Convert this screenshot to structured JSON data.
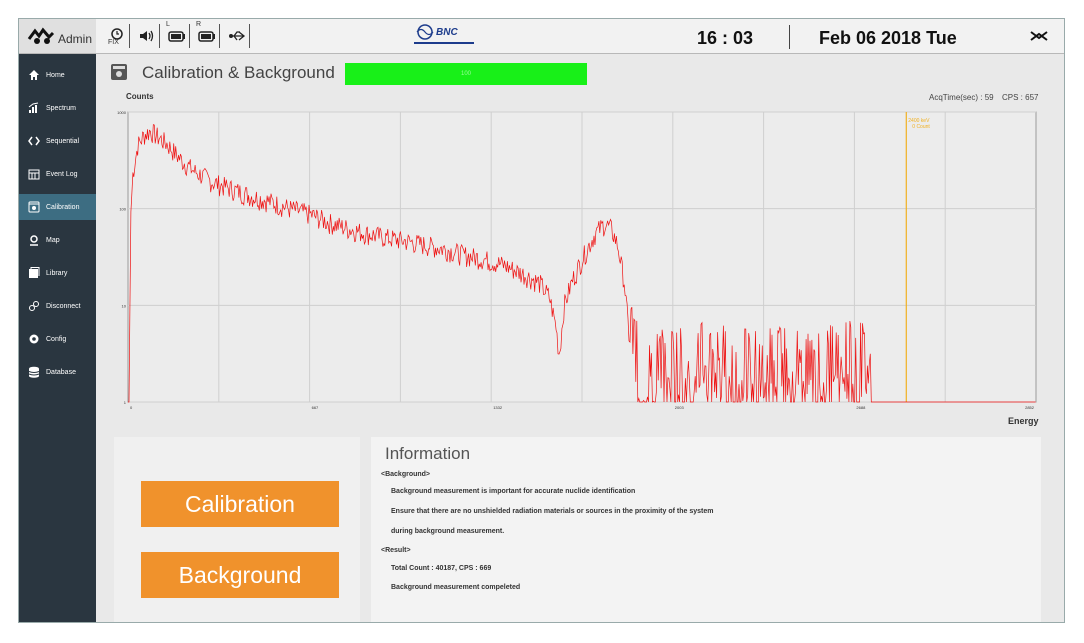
{
  "topbar": {
    "admin_label": "Admin",
    "status_icons": [
      "gps-fix-icon",
      "speaker-icon",
      "battery-left-icon",
      "battery-right-icon",
      "usb-icon"
    ],
    "gps_label": "FIX",
    "battery_left_label": "L",
    "battery_right_label": "R",
    "brand": "BNC",
    "time": "16 : 03",
    "date": "Feb 06 2018 Tue"
  },
  "sidebar": {
    "items": [
      {
        "label": "Home",
        "icon": "home-icon"
      },
      {
        "label": "Spectrum",
        "icon": "spectrum-icon"
      },
      {
        "label": "Sequential",
        "icon": "sequential-icon"
      },
      {
        "label": "Event Log",
        "icon": "calendar-icon"
      },
      {
        "label": "Calibration",
        "icon": "calibration-icon",
        "active": true
      },
      {
        "label": "Map",
        "icon": "map-pin-icon"
      },
      {
        "label": "Library",
        "icon": "library-icon"
      },
      {
        "label": "Disconnect",
        "icon": "disconnect-icon"
      },
      {
        "label": "Config",
        "icon": "gear-icon"
      },
      {
        "label": "Database",
        "icon": "database-icon"
      }
    ]
  },
  "main": {
    "title": "Calibration & Background",
    "progress": {
      "label": "100",
      "percent": 100,
      "color": "#18f018"
    },
    "acq_time": "AcqTime(sec) : 59",
    "cps": "CPS : 657"
  },
  "chart_data": {
    "type": "line",
    "ylabel": "Counts",
    "xlabel": "Energy",
    "yscale": "log",
    "xlim": [
      0,
      2800
    ],
    "ylim": [
      1,
      1000
    ],
    "x_ticks": [
      "0",
      "667",
      "1332",
      "2003",
      "2688",
      "2852"
    ],
    "y_ticks": [
      "1000",
      "100",
      "10",
      "1"
    ],
    "marker": {
      "energy": 2400,
      "label_line1": "2400 keV",
      "label_line2": "0 Count",
      "color": "#f0b020"
    },
    "series": [
      {
        "color": "#ee1111",
        "points": [
          [
            0,
            1
          ],
          [
            4,
            1
          ],
          [
            8,
            80
          ],
          [
            15,
            230
          ],
          [
            30,
            450
          ],
          [
            50,
            580
          ],
          [
            70,
            640
          ],
          [
            90,
            560
          ],
          [
            120,
            470
          ],
          [
            160,
            330
          ],
          [
            200,
            250
          ],
          [
            260,
            190
          ],
          [
            320,
            160
          ],
          [
            380,
            135
          ],
          [
            440,
            118
          ],
          [
            500,
            100
          ],
          [
            560,
            88
          ],
          [
            620,
            72
          ],
          [
            680,
            62
          ],
          [
            740,
            55
          ],
          [
            800,
            50
          ],
          [
            860,
            46
          ],
          [
            920,
            42
          ],
          [
            980,
            38
          ],
          [
            1040,
            33
          ],
          [
            1100,
            30
          ],
          [
            1160,
            26
          ],
          [
            1220,
            21
          ],
          [
            1270,
            17
          ],
          [
            1300,
            12
          ],
          [
            1320,
            6
          ],
          [
            1330,
            3
          ],
          [
            1345,
            10
          ],
          [
            1370,
            18
          ],
          [
            1400,
            30
          ],
          [
            1440,
            55
          ],
          [
            1470,
            70
          ],
          [
            1490,
            62
          ],
          [
            1510,
            42
          ],
          [
            1530,
            18
          ],
          [
            1545,
            5
          ],
          [
            1560,
            3
          ],
          [
            1600,
            2
          ],
          [
            1700,
            2
          ],
          [
            1800,
            2.2
          ],
          [
            1900,
            1.8
          ],
          [
            2000,
            2
          ],
          [
            2100,
            1.8
          ],
          [
            2200,
            2.4
          ],
          [
            2250,
            2.8
          ],
          [
            2270,
            2
          ],
          [
            2300,
            1
          ]
        ]
      }
    ]
  },
  "panel": {
    "calibration_button": "Calibration",
    "background_button": "Background"
  },
  "info": {
    "title": "Information",
    "background_heading": "<Background>",
    "line1": "Background measurement is important for accurate nuclide identification",
    "line2": "Ensure that there are no unshielded radiation materials or sources in the proximity of the system",
    "line3": "during background measurement.",
    "result_heading": "<Result>",
    "result1": "Total Count : 40187, CPS : 669",
    "result2": "Background measurement compeleted"
  },
  "colors": {
    "sidebar": "#2a3640",
    "sidebar_active": "#3d6d82",
    "button": "#f0922c",
    "spectrum": "#ee1111"
  }
}
